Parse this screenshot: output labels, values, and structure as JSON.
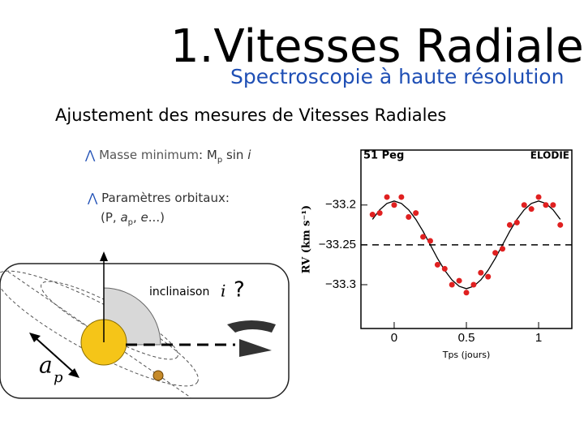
{
  "header": {
    "title": "1.Vitesses Radiales",
    "subtitle": "Spectroscopie à haute résolution"
  },
  "heading": "Ajustement des mesures de Vitesses Radiales",
  "bullets": [
    {
      "lead": "Masse minimum",
      "text": ": M",
      "sub": "p",
      "tail": " sin ",
      "italic": "i"
    },
    {
      "lead": "Paramètres orbitaux:",
      "line2_a": "(P, ",
      "italic": "a",
      "sub": "p",
      "line2_b": ", ",
      "italic2": "e",
      "line2_c": "...)"
    }
  ],
  "diagram": {
    "inclination_label": "inclinaison",
    "inclination_symbol": "i",
    "question": "?",
    "axis_label": "a",
    "axis_sub": "p"
  },
  "chart_data": {
    "type": "scatter",
    "title": "51 Peg",
    "instrument": "ELODIE",
    "ylabel": "RV (km s⁻¹)",
    "xlabel": "Tps (jours)",
    "x": [
      -0.15,
      -0.1,
      -0.05,
      0,
      0.05,
      0.1,
      0.15,
      0.2,
      0.25,
      0.3,
      0.35,
      0.4,
      0.45,
      0.5,
      0.55,
      0.6,
      0.65,
      0.7,
      0.75,
      0.8,
      0.85,
      0.9,
      0.95,
      1.0,
      1.05,
      1.1,
      1.15
    ],
    "values": [
      -33.212,
      -33.21,
      -33.19,
      -33.2,
      -33.19,
      -33.215,
      -33.21,
      -33.24,
      -33.245,
      -33.275,
      -33.28,
      -33.3,
      -33.295,
      -33.31,
      -33.3,
      -33.285,
      -33.29,
      -33.26,
      -33.255,
      -33.225,
      -33.222,
      -33.2,
      -33.205,
      -33.19,
      -33.2,
      -33.2,
      -33.225
    ],
    "color": "#e02020",
    "curve_x": [
      -0.15,
      -0.1,
      -0.05,
      0,
      0.05,
      0.1,
      0.15,
      0.2,
      0.25,
      0.3,
      0.35,
      0.4,
      0.45,
      0.5,
      0.55,
      0.6,
      0.65,
      0.7,
      0.75,
      0.8,
      0.85,
      0.9,
      0.95,
      1.0,
      1.05,
      1.1,
      1.15
    ],
    "curve_values": [
      -33.218,
      -33.206,
      -33.198,
      -33.195,
      -33.198,
      -33.206,
      -33.218,
      -33.233,
      -33.25,
      -33.267,
      -33.282,
      -33.294,
      -33.302,
      -33.305,
      -33.302,
      -33.294,
      -33.282,
      -33.267,
      -33.25,
      -33.233,
      -33.218,
      -33.206,
      -33.198,
      -33.195,
      -33.198,
      -33.206,
      -33.218
    ],
    "reference_line": -33.25,
    "xlim": [
      -0.23,
      1.23
    ],
    "ylim": [
      -33.355,
      -33.131
    ],
    "xticks": [
      0,
      0.5,
      1
    ],
    "yticks": [
      {
        "value": -33.2,
        "label": "−33.2"
      },
      {
        "value": -33.25,
        "label": "−33.25"
      },
      {
        "value": -33.3,
        "label": "−33.3"
      }
    ]
  }
}
